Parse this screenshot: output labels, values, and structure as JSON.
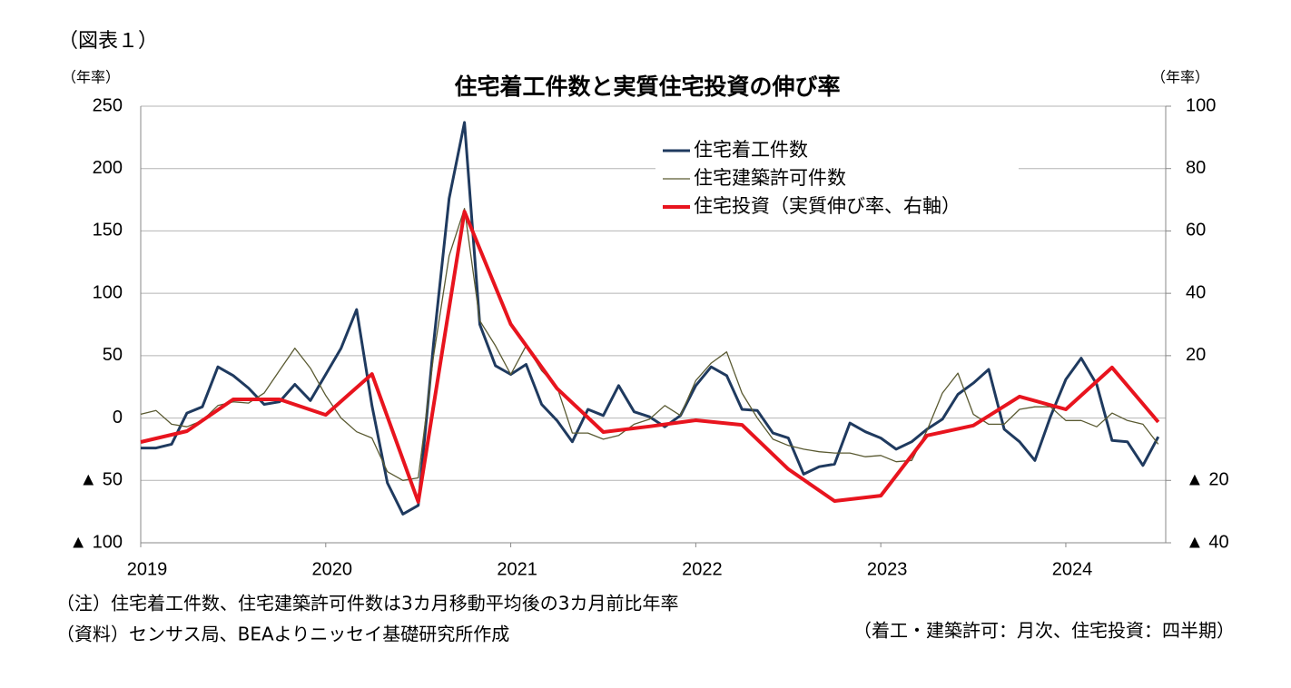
{
  "chart_data": {
    "type": "line",
    "figure_label": "（図表１）",
    "title": "住宅着工件数と実質住宅投資の伸び率",
    "ylabel": "（年率）",
    "y2label": "（年率）",
    "notes": [
      "（注）住宅着工件数、住宅建築許可件数は3カ月移動平均後の3カ月前比年率",
      "（資料）センサス局、BEAよりニッセイ基礎研究所作成"
    ],
    "footer": "（着工・建築許可：月次、住宅投資：四半期）",
    "xlim": [
      2019,
      2024.54
    ],
    "xticks": [
      2019,
      2020,
      2021,
      2022,
      2023,
      2024
    ],
    "ylim": [
      -100,
      250
    ],
    "yticks": [
      250,
      200,
      150,
      100,
      50,
      0,
      {
        "value": -50,
        "label": "▲ 50"
      },
      {
        "value": -100,
        "label": "▲ 100"
      }
    ],
    "y2lim": [
      -40,
      100
    ],
    "y2ticks": [
      100,
      80,
      60,
      40,
      20,
      {
        "value": -20,
        "label": "▲ 20"
      },
      {
        "value": -40,
        "label": "▲ 40"
      }
    ],
    "grid": true,
    "series": [
      {
        "name": "住宅着工件数",
        "color": "#1f3a5f",
        "width": 3,
        "x": [
          2019,
          2019.083,
          2019.167,
          2019.25,
          2019.333,
          2019.417,
          2019.5,
          2019.583,
          2019.667,
          2019.75,
          2019.833,
          2019.917,
          2020,
          2020.083,
          2020.167,
          2020.25,
          2020.333,
          2020.417,
          2020.5,
          2020.583,
          2020.667,
          2020.75,
          2020.833,
          2020.917,
          2021,
          2021.083,
          2021.167,
          2021.25,
          2021.333,
          2021.417,
          2021.5,
          2021.583,
          2021.667,
          2021.75,
          2021.833,
          2021.917,
          2022,
          2022.083,
          2022.167,
          2022.25,
          2022.333,
          2022.417,
          2022.5,
          2022.583,
          2022.667,
          2022.75,
          2022.833,
          2022.917,
          2023,
          2023.083,
          2023.167,
          2023.25,
          2023.333,
          2023.417,
          2023.5,
          2023.583,
          2023.667,
          2023.75,
          2023.833,
          2023.917,
          2024,
          2024.083,
          2024.167,
          2024.25,
          2024.333,
          2024.417,
          2024.5
        ],
        "values": [
          -24,
          -24,
          -21,
          4,
          9,
          41,
          34,
          24,
          11,
          13,
          27,
          14,
          35,
          56,
          87,
          10,
          -52,
          -77,
          -70,
          60,
          176,
          237,
          75,
          42,
          35,
          43,
          11,
          -2,
          -19,
          7,
          2,
          26,
          5,
          1,
          -7,
          2,
          26,
          41,
          34,
          7,
          6,
          -12,
          -16,
          -45,
          -39,
          -37,
          -4,
          -11,
          -16,
          -25,
          -19,
          -9,
          -1,
          19,
          28,
          39,
          -9,
          -19,
          -34,
          1,
          31,
          48,
          27,
          -18,
          -19,
          -38,
          -15
        ]
      },
      {
        "name": "住宅建築許可件数",
        "color": "#5a5a32",
        "width": 1.3,
        "x": [
          2019,
          2019.083,
          2019.167,
          2019.25,
          2019.333,
          2019.417,
          2019.5,
          2019.583,
          2019.667,
          2019.75,
          2019.833,
          2019.917,
          2020,
          2020.083,
          2020.167,
          2020.25,
          2020.333,
          2020.417,
          2020.5,
          2020.583,
          2020.667,
          2020.75,
          2020.833,
          2020.917,
          2021,
          2021.083,
          2021.167,
          2021.25,
          2021.333,
          2021.417,
          2021.5,
          2021.583,
          2021.667,
          2021.75,
          2021.833,
          2021.917,
          2022,
          2022.083,
          2022.167,
          2022.25,
          2022.333,
          2022.417,
          2022.5,
          2022.583,
          2022.667,
          2022.75,
          2022.833,
          2022.917,
          2023,
          2023.083,
          2023.167,
          2023.25,
          2023.333,
          2023.417,
          2023.5,
          2023.583,
          2023.667,
          2023.75,
          2023.833,
          2023.917,
          2024,
          2024.083,
          2024.167,
          2024.25,
          2024.333,
          2024.417,
          2024.5
        ],
        "values": [
          3,
          6,
          -5,
          -7,
          -2,
          10,
          13,
          12,
          20,
          38,
          56,
          40,
          18,
          0,
          -11,
          -16,
          -43,
          -50,
          -48,
          50,
          130,
          168,
          78,
          58,
          35,
          58,
          38,
          25,
          -12,
          -12,
          -17,
          -14,
          -5,
          -1,
          10,
          2,
          30,
          44,
          53,
          20,
          0,
          -17,
          -22,
          -25,
          -27,
          -28,
          -28,
          -31,
          -30,
          -35,
          -34,
          -10,
          20,
          36,
          3,
          -5,
          -5,
          7,
          9,
          9,
          -2,
          -2,
          -7,
          4,
          -2,
          -5,
          -21
        ]
      },
      {
        "name": "住宅投資（実質伸び率、右軸）",
        "color": "#e8141e",
        "width": 4,
        "axis": "y2",
        "x": [
          2019,
          2019.25,
          2019.5,
          2019.75,
          2020,
          2020.25,
          2020.5,
          2020.75,
          2021,
          2021.25,
          2021.5,
          2021.75,
          2022,
          2022.25,
          2022.5,
          2022.75,
          2023,
          2023.25,
          2023.5,
          2023.75,
          2024,
          2024.25,
          2024.5
        ],
        "values": [
          -7.7,
          -4.2,
          6.0,
          6.0,
          1.0,
          14.1,
          -26.9,
          66.2,
          30.1,
          9.5,
          -4.5,
          -2.7,
          -0.7,
          -2.2,
          -16.4,
          -26.6,
          -24.9,
          -5.6,
          -2.4,
          6.9,
          2.8,
          16.2,
          -1.3
        ]
      }
    ]
  }
}
